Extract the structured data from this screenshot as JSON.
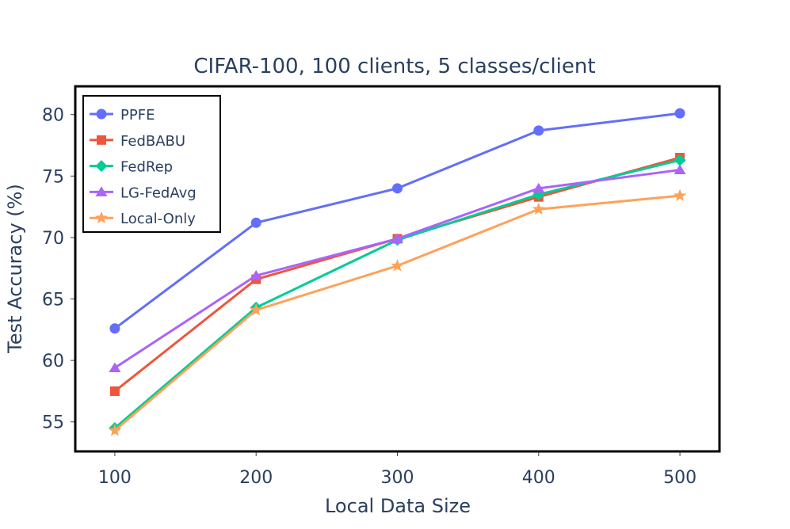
{
  "chart_data": {
    "type": "line",
    "title": "CIFAR-100, 100 clients, 5 classes/client",
    "xlabel": "Local Data Size",
    "ylabel": "Test Accuracy (%)",
    "x": [
      100,
      200,
      300,
      400,
      500
    ],
    "x_ticks": [
      "100",
      "200",
      "300",
      "400",
      "500"
    ],
    "y_ticks": [
      "55",
      "60",
      "65",
      "70",
      "75",
      "80"
    ],
    "xlim": [
      72,
      528
    ],
    "ylim": [
      52.6,
      82.3
    ],
    "grid": false,
    "legend_position": "top-left",
    "series": [
      {
        "name": "PPFE",
        "color": "#636efa",
        "marker": "circle",
        "values": [
          62.6,
          71.2,
          74.0,
          78.7,
          80.1
        ]
      },
      {
        "name": "FedBABU",
        "color": "#ef553b",
        "marker": "square",
        "values": [
          57.5,
          66.6,
          69.9,
          73.3,
          76.5
        ]
      },
      {
        "name": "FedRep",
        "color": "#00cc96",
        "marker": "diamond",
        "values": [
          54.5,
          64.3,
          69.8,
          73.5,
          76.3
        ]
      },
      {
        "name": "LG-FedAvg",
        "color": "#ab63fa",
        "marker": "triangle-up",
        "values": [
          59.4,
          66.9,
          69.9,
          74.0,
          75.5
        ]
      },
      {
        "name": "Local-Only",
        "color": "#ffa15a",
        "marker": "star",
        "values": [
          54.3,
          64.1,
          67.7,
          72.3,
          73.4
        ]
      }
    ]
  }
}
